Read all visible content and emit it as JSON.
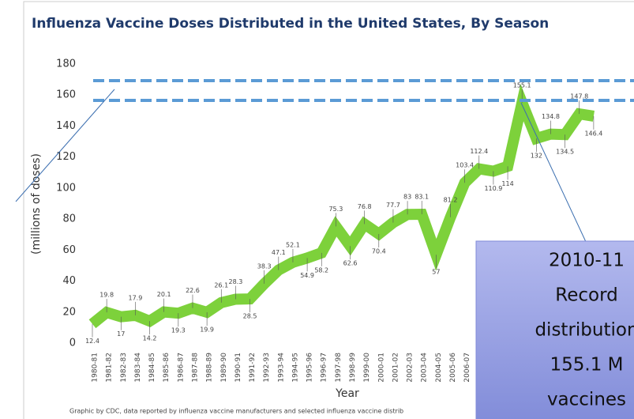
{
  "chart_data": {
    "type": "line",
    "title": "Influenza Vaccine Doses Distributed in the United States, By Season",
    "y_label": "(millions of doses)",
    "x_label": "Year",
    "footnote": "Graphic by CDC, data reported by influenza vaccine manufacturers and selected influenza vaccine distrib",
    "categories": [
      "1980-81",
      "1981-82",
      "1982-83",
      "1983-84",
      "1984-85",
      "1985-86",
      "1986-87",
      "1987-88",
      "1988-89",
      "1989-90",
      "1990-91",
      "1991-92",
      "1992-93",
      "1993-94",
      "1994-95",
      "1995-96",
      "1996-97",
      "1997-98",
      "1998-99",
      "1999-00",
      "2000-01",
      "2001-02",
      "2002-03",
      "2003-04",
      "2004-05",
      "2005-06",
      "2006-07",
      null,
      null,
      null,
      null,
      null,
      null,
      null,
      null,
      null
    ],
    "series": [
      {
        "name": "Doses",
        "color": "#7dd13b",
        "values": [
          12.4,
          19.8,
          17,
          17.9,
          14.2,
          20.1,
          19.3,
          22.6,
          19.9,
          26.1,
          28.3,
          28.5,
          38.3,
          47.1,
          52.1,
          54.9,
          58.2,
          75.3,
          62.6,
          76.8,
          70.4,
          77.7,
          83,
          83.1,
          57,
          81.2,
          103.4,
          112.4,
          110.9,
          114,
          155.1,
          132,
          134.8,
          134.5,
          147.8,
          146.4
        ]
      }
    ],
    "ylim": [
      0,
      180
    ],
    "yticks": [
      0,
      20,
      40,
      60,
      80,
      100,
      120,
      140,
      160,
      180
    ],
    "annotation": [
      "2010-11",
      "Record",
      "distribution",
      "155.1 M",
      "vaccines"
    ]
  }
}
